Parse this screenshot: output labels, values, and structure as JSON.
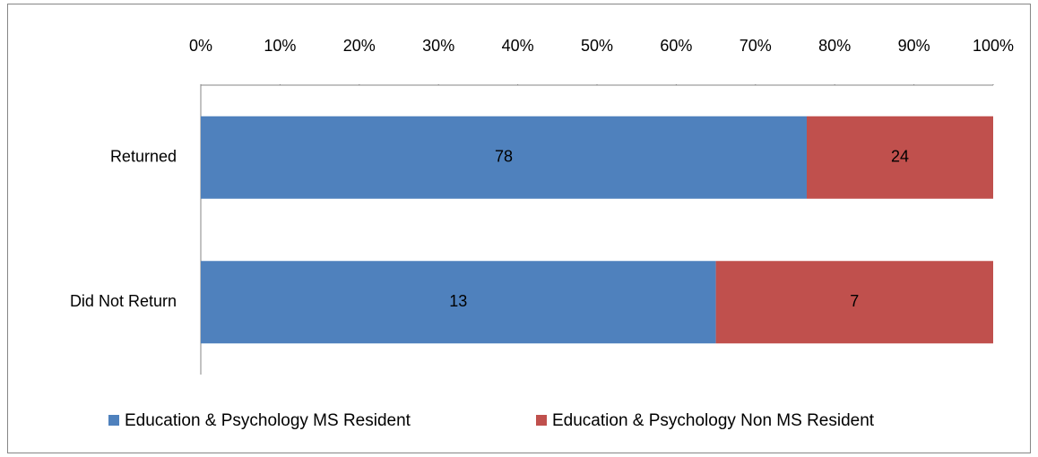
{
  "chart_data": {
    "type": "bar",
    "orientation": "horizontal",
    "stacking": "percent",
    "categories": [
      "Returned",
      "Did Not Return"
    ],
    "series": [
      {
        "name": "Education & Psychology MS Resident",
        "color": "#4f81bd",
        "values": [
          78,
          13
        ]
      },
      {
        "name": "Education & Psychology Non MS Resident",
        "color": "#c0504d",
        "values": [
          24,
          7
        ]
      }
    ],
    "xlim": [
      0,
      100
    ],
    "xticks": [
      {
        "value": 0,
        "label": "0%"
      },
      {
        "value": 10,
        "label": "10%"
      },
      {
        "value": 20,
        "label": "20%"
      },
      {
        "value": 30,
        "label": "30%"
      },
      {
        "value": 40,
        "label": "40%"
      },
      {
        "value": 50,
        "label": "50%"
      },
      {
        "value": 60,
        "label": "60%"
      },
      {
        "value": 70,
        "label": "70%"
      },
      {
        "value": 80,
        "label": "80%"
      },
      {
        "value": 90,
        "label": "90%"
      },
      {
        "value": 100,
        "label": "100%"
      }
    ],
    "legend": "bottom",
    "grid": false
  }
}
